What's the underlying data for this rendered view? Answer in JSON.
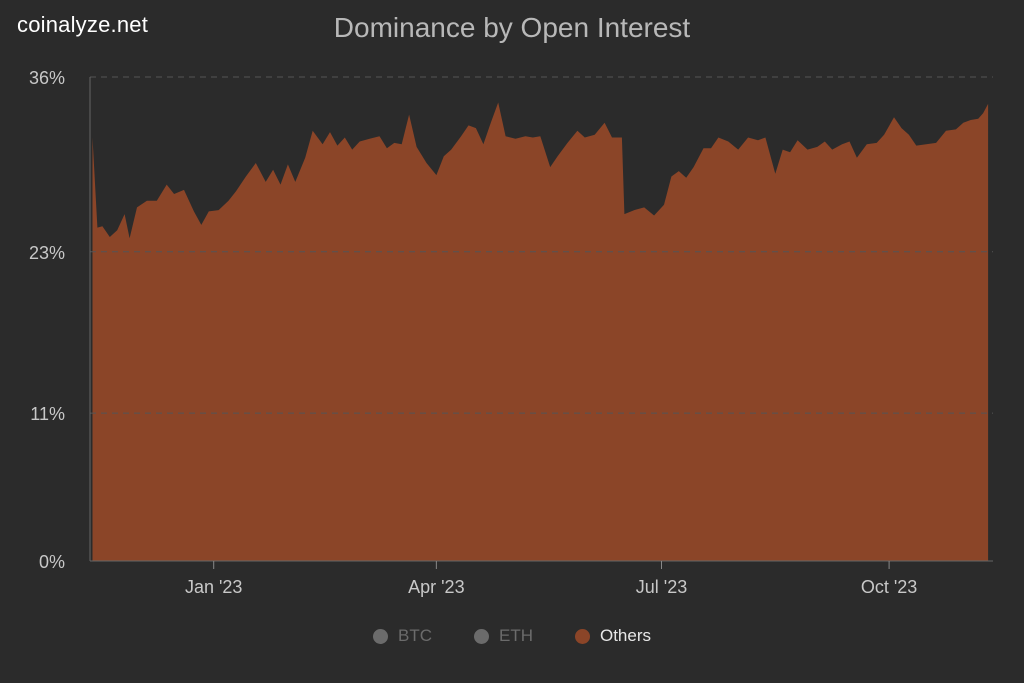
{
  "brand": "coinalyze.net",
  "colors": {
    "background": "#2b2b2b",
    "others_fill": "#8b4528",
    "grid": "#555555",
    "axis_text": "#c8c8c8",
    "legend_inactive": "#6b6b6b",
    "legend_active": "#e8e8e8"
  },
  "chart_data": {
    "type": "area",
    "title": "Dominance by Open Interest",
    "y_ticks": [
      "0%",
      "11%",
      "23%",
      "36%"
    ],
    "ylim": [
      0,
      36
    ],
    "x_ticks": [
      {
        "label": "Jan '23",
        "date": "2023-01-01"
      },
      {
        "label": "Apr '23",
        "date": "2023-04-01"
      },
      {
        "label": "Jul '23",
        "date": "2023-07-01"
      },
      {
        "label": "Oct '23",
        "date": "2023-10-01"
      }
    ],
    "x_range": [
      "2022-11-12",
      "2023-11-12"
    ],
    "grid": true,
    "legend_placement": "bottom",
    "legend": [
      {
        "name": "BTC",
        "active": false,
        "color": "#6b6b6b"
      },
      {
        "name": "ETH",
        "active": false,
        "color": "#6b6b6b"
      },
      {
        "name": "Others",
        "active": true,
        "color": "#8b4528"
      }
    ],
    "series": [
      {
        "name": "Others",
        "points": [
          [
            "2022-11-13",
            31.5
          ],
          [
            "2022-11-15",
            24.8
          ],
          [
            "2022-11-17",
            24.9
          ],
          [
            "2022-11-20",
            24.1
          ],
          [
            "2022-11-23",
            24.6
          ],
          [
            "2022-11-26",
            25.8
          ],
          [
            "2022-11-28",
            24.0
          ],
          [
            "2022-12-01",
            26.3
          ],
          [
            "2022-12-05",
            26.8
          ],
          [
            "2022-12-09",
            26.8
          ],
          [
            "2022-12-13",
            28.0
          ],
          [
            "2022-12-16",
            27.3
          ],
          [
            "2022-12-20",
            27.6
          ],
          [
            "2022-12-24",
            26.0
          ],
          [
            "2022-12-27",
            25.0
          ],
          [
            "2022-12-30",
            26.0
          ],
          [
            "2023-01-03",
            26.1
          ],
          [
            "2023-01-07",
            26.8
          ],
          [
            "2023-01-10",
            27.5
          ],
          [
            "2023-01-14",
            28.6
          ],
          [
            "2023-01-18",
            29.6
          ],
          [
            "2023-01-22",
            28.2
          ],
          [
            "2023-01-25",
            29.1
          ],
          [
            "2023-01-28",
            28.0
          ],
          [
            "2023-01-31",
            29.5
          ],
          [
            "2023-02-03",
            28.2
          ],
          [
            "2023-02-07",
            30.0
          ],
          [
            "2023-02-10",
            32.0
          ],
          [
            "2023-02-14",
            31.0
          ],
          [
            "2023-02-17",
            31.9
          ],
          [
            "2023-02-20",
            30.9
          ],
          [
            "2023-02-23",
            31.5
          ],
          [
            "2023-02-26",
            30.6
          ],
          [
            "2023-03-01",
            31.2
          ],
          [
            "2023-03-05",
            31.4
          ],
          [
            "2023-03-09",
            31.6
          ],
          [
            "2023-03-12",
            30.7
          ],
          [
            "2023-03-15",
            31.1
          ],
          [
            "2023-03-18",
            31.0
          ],
          [
            "2023-03-21",
            33.2
          ],
          [
            "2023-03-24",
            30.8
          ],
          [
            "2023-03-28",
            29.6
          ],
          [
            "2023-04-01",
            28.7
          ],
          [
            "2023-04-04",
            30.1
          ],
          [
            "2023-04-07",
            30.6
          ],
          [
            "2023-04-11",
            31.6
          ],
          [
            "2023-04-14",
            32.4
          ],
          [
            "2023-04-17",
            32.2
          ],
          [
            "2023-04-20",
            31.0
          ],
          [
            "2023-04-23",
            32.6
          ],
          [
            "2023-04-26",
            34.1
          ],
          [
            "2023-04-29",
            31.6
          ],
          [
            "2023-05-03",
            31.4
          ],
          [
            "2023-05-07",
            31.6
          ],
          [
            "2023-05-10",
            31.5
          ],
          [
            "2023-05-13",
            31.6
          ],
          [
            "2023-05-17",
            29.3
          ],
          [
            "2023-05-20",
            30.1
          ],
          [
            "2023-05-24",
            31.1
          ],
          [
            "2023-05-28",
            32.0
          ],
          [
            "2023-05-31",
            31.5
          ],
          [
            "2023-06-04",
            31.7
          ],
          [
            "2023-06-08",
            32.6
          ],
          [
            "2023-06-11",
            31.5
          ],
          [
            "2023-06-15",
            31.5
          ],
          [
            "2023-06-16",
            25.8
          ],
          [
            "2023-06-20",
            26.1
          ],
          [
            "2023-06-24",
            26.3
          ],
          [
            "2023-06-28",
            25.7
          ],
          [
            "2023-07-02",
            26.5
          ],
          [
            "2023-07-05",
            28.6
          ],
          [
            "2023-07-08",
            29.0
          ],
          [
            "2023-07-11",
            28.5
          ],
          [
            "2023-07-14",
            29.3
          ],
          [
            "2023-07-18",
            30.7
          ],
          [
            "2023-07-21",
            30.7
          ],
          [
            "2023-07-24",
            31.5
          ],
          [
            "2023-07-28",
            31.2
          ],
          [
            "2023-08-01",
            30.6
          ],
          [
            "2023-08-05",
            31.5
          ],
          [
            "2023-08-09",
            31.3
          ],
          [
            "2023-08-12",
            31.5
          ],
          [
            "2023-08-16",
            28.8
          ],
          [
            "2023-08-19",
            30.6
          ],
          [
            "2023-08-22",
            30.4
          ],
          [
            "2023-08-25",
            31.3
          ],
          [
            "2023-08-29",
            30.6
          ],
          [
            "2023-09-02",
            30.8
          ],
          [
            "2023-09-05",
            31.2
          ],
          [
            "2023-09-08",
            30.6
          ],
          [
            "2023-09-12",
            31.0
          ],
          [
            "2023-09-15",
            31.2
          ],
          [
            "2023-09-18",
            30.0
          ],
          [
            "2023-09-22",
            31.0
          ],
          [
            "2023-09-26",
            31.1
          ],
          [
            "2023-09-29",
            31.7
          ],
          [
            "2023-10-03",
            33.0
          ],
          [
            "2023-10-06",
            32.2
          ],
          [
            "2023-10-09",
            31.7
          ],
          [
            "2023-10-12",
            30.9
          ],
          [
            "2023-10-16",
            31.0
          ],
          [
            "2023-10-20",
            31.1
          ],
          [
            "2023-10-24",
            32.0
          ],
          [
            "2023-10-28",
            32.1
          ],
          [
            "2023-10-31",
            32.6
          ],
          [
            "2023-11-03",
            32.8
          ],
          [
            "2023-11-06",
            32.9
          ],
          [
            "2023-11-08",
            33.3
          ],
          [
            "2023-11-10",
            34.0
          ]
        ]
      }
    ]
  }
}
